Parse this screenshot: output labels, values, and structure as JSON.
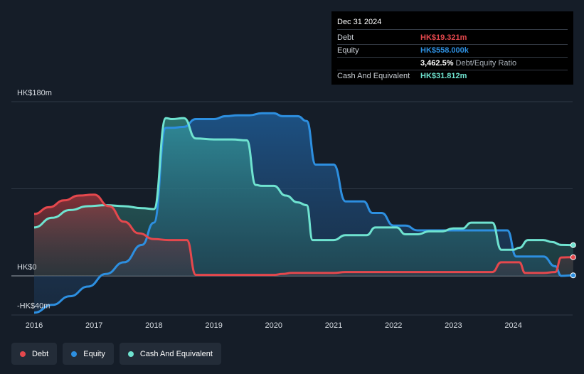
{
  "tooltip": {
    "date": "Dec 31 2024",
    "debt_label": "Debt",
    "debt_value": "HK$19.321m",
    "equity_label": "Equity",
    "equity_value": "HK$558.000k",
    "ratio_value": "3,462.5%",
    "ratio_label": "Debt/Equity Ratio",
    "cash_label": "Cash And Equivalent",
    "cash_value": "HK$31.812m"
  },
  "legend": [
    {
      "label": "Debt",
      "color": "#e5484d"
    },
    {
      "label": "Equity",
      "color": "#2d8fe0"
    },
    {
      "label": "Cash And Equivalent",
      "color": "#6fe3d0"
    }
  ],
  "chart_data": {
    "type": "area",
    "y_tick_labels": [
      "HK$180m",
      "HK$0",
      "-HK$40m"
    ],
    "ylim": [
      -40,
      180
    ],
    "xlim": [
      2016,
      2025
    ],
    "x_tick_labels": [
      "2016",
      "2017",
      "2018",
      "2019",
      "2020",
      "2021",
      "2022",
      "2023",
      "2024"
    ],
    "colors": {
      "debt": "#e5484d",
      "equity": "#2d8fe0",
      "cash": "#6fe3d0"
    },
    "series": [
      {
        "name": "Debt",
        "x": [
          2016.0,
          2016.25,
          2016.5,
          2016.75,
          2017.0,
          2017.25,
          2017.5,
          2017.75,
          2018.0,
          2018.25,
          2018.55,
          2018.7,
          2019.0,
          2019.5,
          2020.0,
          2020.15,
          2020.3,
          2021.0,
          2021.2,
          2021.5,
          2022.0,
          2022.5,
          2023.0,
          2023.5,
          2023.65,
          2023.8,
          2024.1,
          2024.2,
          2024.5,
          2024.7,
          2024.8,
          2025.0
        ],
        "y": [
          64,
          71,
          78,
          83,
          84,
          72,
          56,
          44,
          38,
          37,
          37,
          1,
          1,
          1,
          1,
          2,
          3,
          3,
          4,
          4,
          4,
          4,
          4,
          4,
          4,
          14,
          14,
          3,
          3,
          4,
          19,
          19.321
        ]
      },
      {
        "name": "Equity",
        "x": [
          2016.0,
          2016.3,
          2016.6,
          2016.9,
          2017.2,
          2017.5,
          2017.8,
          2018.0,
          2018.2,
          2018.3,
          2018.5,
          2018.7,
          2018.9,
          2019.0,
          2019.2,
          2019.4,
          2019.6,
          2019.8,
          2020.0,
          2020.15,
          2020.4,
          2020.55,
          2020.7,
          2021.0,
          2021.2,
          2021.5,
          2021.65,
          2021.8,
          2022.0,
          2022.2,
          2022.4,
          2022.7,
          2023.0,
          2023.3,
          2023.6,
          2023.9,
          2024.05,
          2024.2,
          2024.5,
          2024.7,
          2024.8,
          2025.0
        ],
        "y": [
          -38,
          -30,
          -21,
          -11,
          2,
          14,
          32,
          55,
          153,
          153,
          154,
          162,
          162,
          162,
          165,
          166,
          166,
          168,
          168,
          165,
          165,
          160,
          115,
          115,
          77,
          77,
          65,
          65,
          52,
          52,
          47,
          47,
          47,
          47,
          47,
          47,
          20,
          20,
          20,
          10,
          0,
          0.558
        ]
      },
      {
        "name": "Cash And Equivalent",
        "x": [
          2016.0,
          2016.3,
          2016.6,
          2016.9,
          2017.2,
          2017.5,
          2017.8,
          2018.0,
          2018.2,
          2018.3,
          2018.5,
          2018.7,
          2019.0,
          2019.3,
          2019.55,
          2019.7,
          2019.8,
          2020.0,
          2020.2,
          2020.4,
          2020.55,
          2020.65,
          2020.8,
          2021.0,
          2021.2,
          2021.4,
          2021.55,
          2021.7,
          2021.9,
          2022.05,
          2022.2,
          2022.4,
          2022.6,
          2022.8,
          2023.0,
          2023.15,
          2023.3,
          2023.5,
          2023.65,
          2023.8,
          2024.0,
          2024.1,
          2024.25,
          2024.5,
          2024.65,
          2024.8,
          2025.0
        ],
        "y": [
          50,
          60,
          68,
          72,
          73,
          72,
          70,
          69,
          163,
          162,
          163,
          142,
          141,
          141,
          140,
          94,
          93,
          93,
          83,
          76,
          73,
          37,
          37,
          37,
          42,
          42,
          42,
          50,
          50,
          50,
          43,
          43,
          46,
          46,
          49,
          49,
          55,
          55,
          55,
          27,
          27,
          29,
          37,
          37,
          35,
          32,
          31.812
        ]
      }
    ]
  }
}
